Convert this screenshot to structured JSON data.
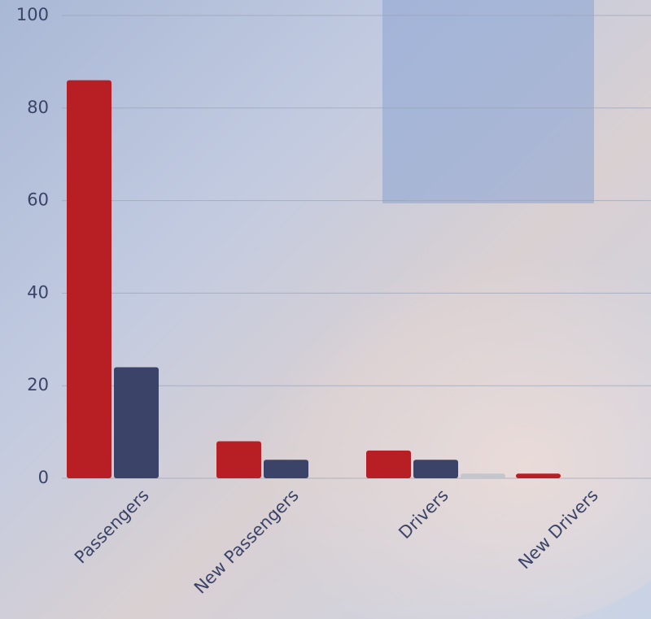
{
  "chart_data": {
    "type": "bar",
    "categories": [
      "Passengers",
      "New Passengers",
      "Drivers",
      "New Drivers"
    ],
    "series": [
      {
        "color": "#b71f24",
        "values": [
          86,
          8,
          6,
          1
        ]
      },
      {
        "color": "#3b4468",
        "values": [
          24,
          4,
          4,
          0
        ]
      },
      {
        "color": "#c4c6cc",
        "values": [
          0,
          0,
          1,
          0
        ]
      }
    ],
    "ylim": [
      0,
      100
    ],
    "yticks": [
      0,
      20,
      40,
      60,
      80,
      100
    ],
    "grid": true
  }
}
